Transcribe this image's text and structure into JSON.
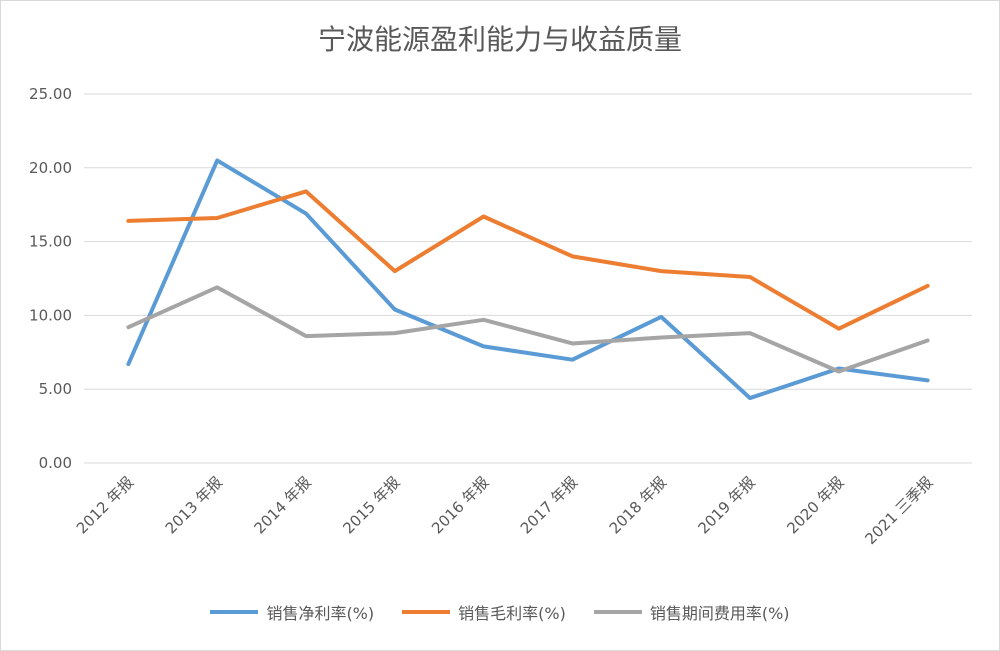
{
  "chart_data": {
    "type": "line",
    "title": "宁波能源盈利能力与收益质量",
    "categories": [
      "2012 年报",
      "2013 年报",
      "2014 年报",
      "2015 年报",
      "2016 年报",
      "2017 年报",
      "2018 年报",
      "2019 年报",
      "2020 年报",
      "2021 三季报"
    ],
    "yticks": [
      "0.00",
      "5.00",
      "10.00",
      "15.00",
      "20.00",
      "25.00"
    ],
    "ylim": [
      0,
      25
    ],
    "grid": true,
    "legend_position": "bottom",
    "series": [
      {
        "name": "销售净利率(%)",
        "color": "#5b9bd5",
        "values": [
          6.7,
          20.5,
          16.9,
          10.4,
          7.9,
          7.0,
          9.9,
          4.4,
          6.4,
          5.6
        ]
      },
      {
        "name": "销售毛利率(%)",
        "color": "#ed7d31",
        "values": [
          16.4,
          16.6,
          18.4,
          13.0,
          16.7,
          14.0,
          13.0,
          12.6,
          9.1,
          12.0
        ]
      },
      {
        "name": "销售期间费用率(%)",
        "color": "#a5a5a5",
        "values": [
          9.2,
          11.9,
          8.6,
          8.8,
          9.7,
          8.1,
          8.5,
          8.8,
          6.2,
          8.3
        ]
      }
    ]
  }
}
